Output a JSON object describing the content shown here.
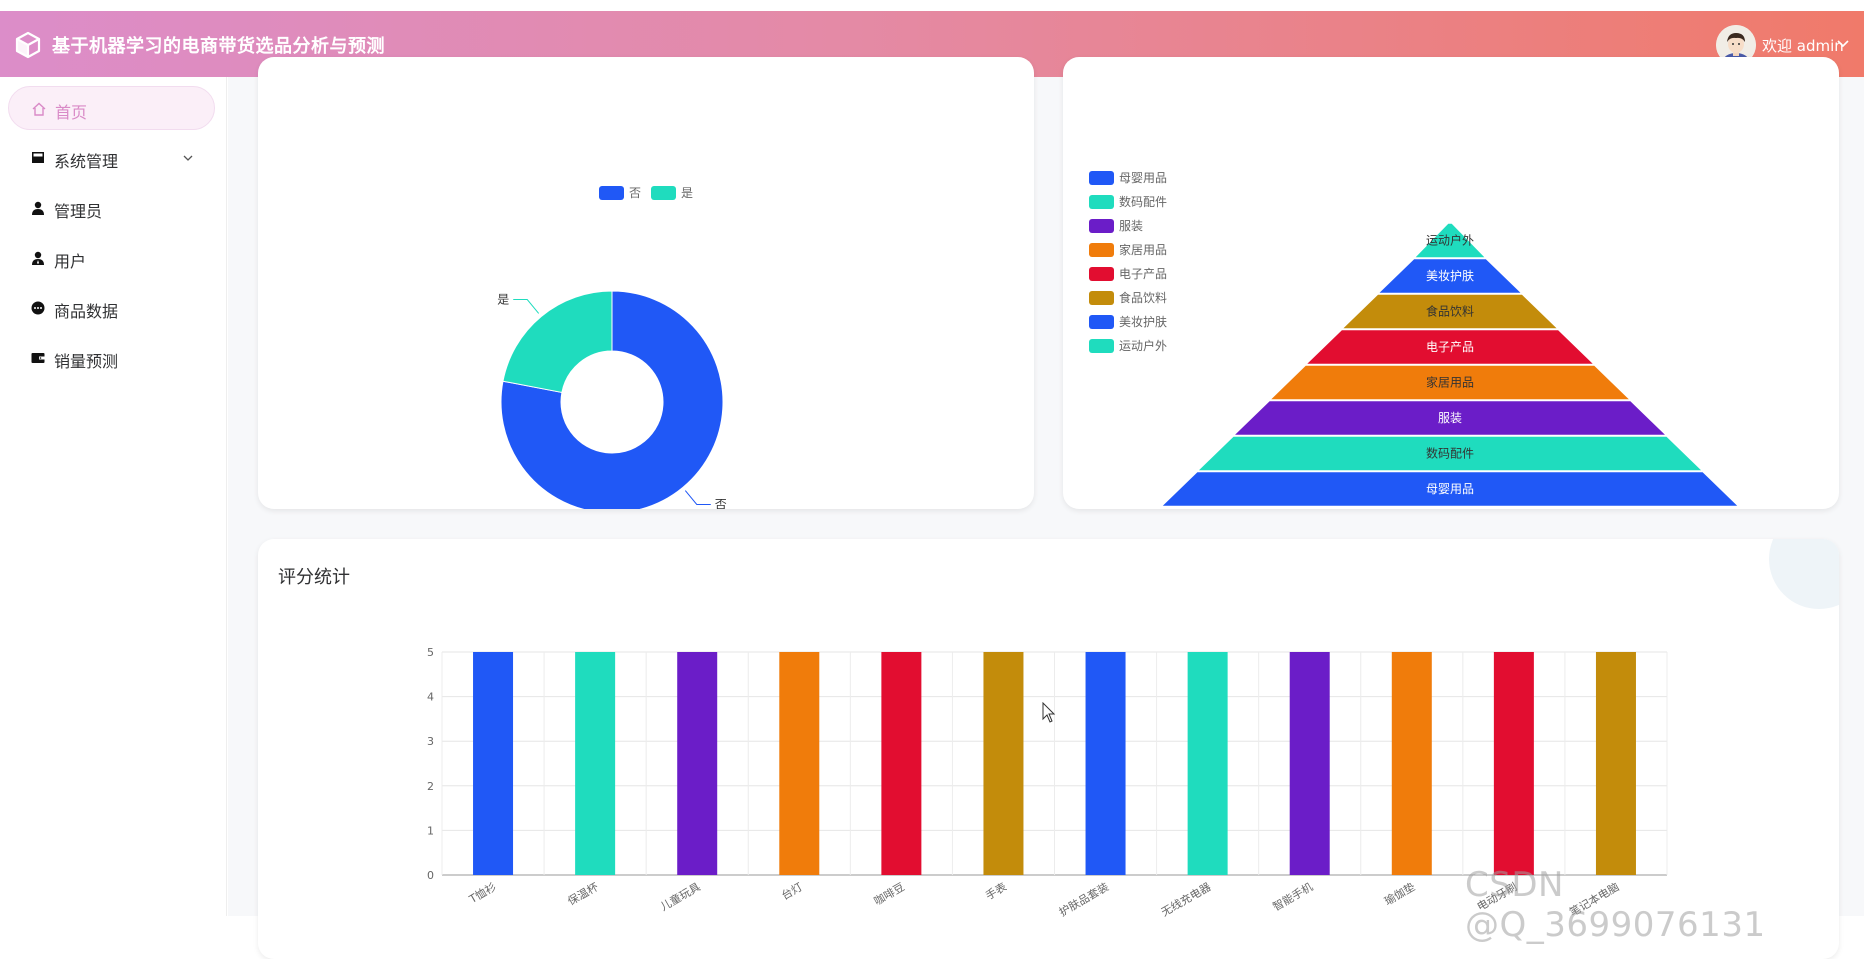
{
  "app": {
    "title": "基于机器学习的电商带货选品分析与预测",
    "logo_icon": "cube-icon"
  },
  "user": {
    "welcome": "欢迎 admin",
    "avatar_icon": "avatar-icon"
  },
  "sidebar": {
    "items": [
      {
        "label": "首页",
        "icon": "home-icon",
        "active": true
      },
      {
        "label": "系统管理",
        "icon": "computer-icon",
        "has_submenu": true
      },
      {
        "label": "管理员",
        "icon": "user-icon"
      },
      {
        "label": "用户",
        "icon": "user-icon"
      },
      {
        "label": "商品数据",
        "icon": "chat-icon"
      },
      {
        "label": "销量预测",
        "icon": "wallet-icon"
      }
    ]
  },
  "colors": {
    "blue": "#2058f6",
    "teal": "#1fdcbe",
    "purple": "#6b1dc8",
    "orange": "#f07c0b",
    "red": "#e20d30",
    "gold": "#c38c0b",
    "accent": "#d98ac7"
  },
  "chart_data": [
    {
      "type": "pie",
      "variant": "donut",
      "legend": [
        "否",
        "是"
      ],
      "slices": [
        {
          "name": "否",
          "value": 78,
          "color": "#2058f6"
        },
        {
          "name": "是",
          "value": 22,
          "color": "#1fdcbe"
        }
      ],
      "legend_placement": "top-center"
    },
    {
      "type": "funnel",
      "legend": [
        "母婴用品",
        "数码配件",
        "服装",
        "家居用品",
        "电子产品",
        "食品饮料",
        "美妆护肤",
        "运动户外"
      ],
      "legend_placement": "top-left",
      "layers": [
        {
          "name": "运动户外",
          "value": 1,
          "color": "#1fdcbe"
        },
        {
          "name": "美妆护肤",
          "value": 2,
          "color": "#2058f6"
        },
        {
          "name": "食品饮料",
          "value": 3,
          "color": "#c38c0b"
        },
        {
          "name": "电子产品",
          "value": 4,
          "color": "#e20d30"
        },
        {
          "name": "家居用品",
          "value": 5,
          "color": "#f07c0b"
        },
        {
          "name": "服装",
          "value": 6,
          "color": "#6b1dc8"
        },
        {
          "name": "数码配件",
          "value": 7,
          "color": "#1fdcbe"
        },
        {
          "name": "母婴用品",
          "value": 8,
          "color": "#2058f6"
        }
      ]
    },
    {
      "type": "bar",
      "title": "评分统计",
      "categories": [
        "T恤衫",
        "保温杯",
        "儿童玩具",
        "台灯",
        "咖啡豆",
        "手表",
        "护肤品套装",
        "无线充电器",
        "智能手机",
        "瑜伽垫",
        "电动牙刷",
        "笔记本电脑"
      ],
      "values": [
        5,
        5,
        5,
        5,
        5,
        5,
        5,
        5,
        5,
        5,
        5,
        5
      ],
      "colors": [
        "#2058f6",
        "#1fdcbe",
        "#6b1dc8",
        "#f07c0b",
        "#e20d30",
        "#c38c0b",
        "#2058f6",
        "#1fdcbe",
        "#6b1dc8",
        "#f07c0b",
        "#e20d30",
        "#c38c0b"
      ],
      "yticks": [
        "0",
        "1",
        "2",
        "3",
        "4",
        "5"
      ],
      "ylim": [
        0,
        5
      ],
      "grid": true
    }
  ],
  "watermark": "CSDN @Q_3699076131"
}
